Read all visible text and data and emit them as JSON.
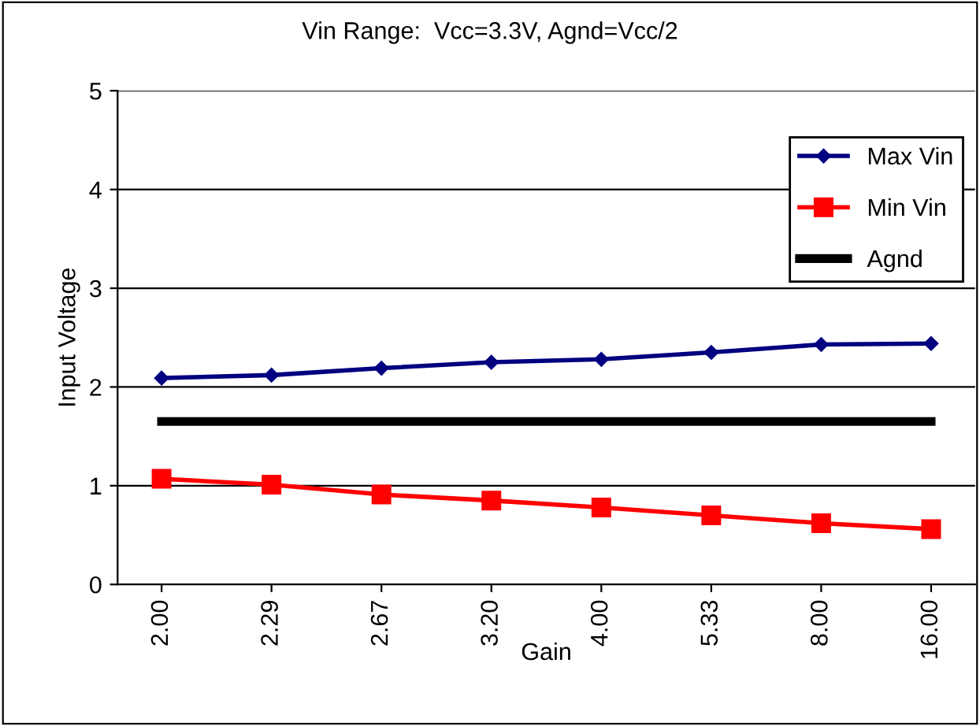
{
  "chart_data": {
    "type": "line",
    "title": "Vin Range:  Vcc=3.3V, Agnd=Vcc/2",
    "xlabel": "Gain",
    "ylabel": "Input Voltage",
    "categories": [
      "2.00",
      "2.29",
      "2.67",
      "3.20",
      "4.00",
      "5.33",
      "8.00",
      "16.00"
    ],
    "series": [
      {
        "name": "Max Vin",
        "color": "#000080",
        "marker": "diamond",
        "values": [
          2.09,
          2.12,
          2.19,
          2.25,
          2.28,
          2.35,
          2.43,
          2.44
        ]
      },
      {
        "name": "Min Vin",
        "color": "#ff0000",
        "marker": "square",
        "values": [
          1.07,
          1.01,
          0.91,
          0.85,
          0.78,
          0.7,
          0.62,
          0.56
        ]
      },
      {
        "name": "Agnd",
        "color": "#000000",
        "marker": "none",
        "values": [
          1.65,
          1.65,
          1.65,
          1.65,
          1.65,
          1.65,
          1.65,
          1.65
        ]
      }
    ],
    "ylim": [
      0,
      5
    ],
    "yticks": [
      0,
      1,
      2,
      3,
      4,
      5
    ],
    "grid": "y",
    "legend": "top right",
    "line_style": "solid"
  }
}
